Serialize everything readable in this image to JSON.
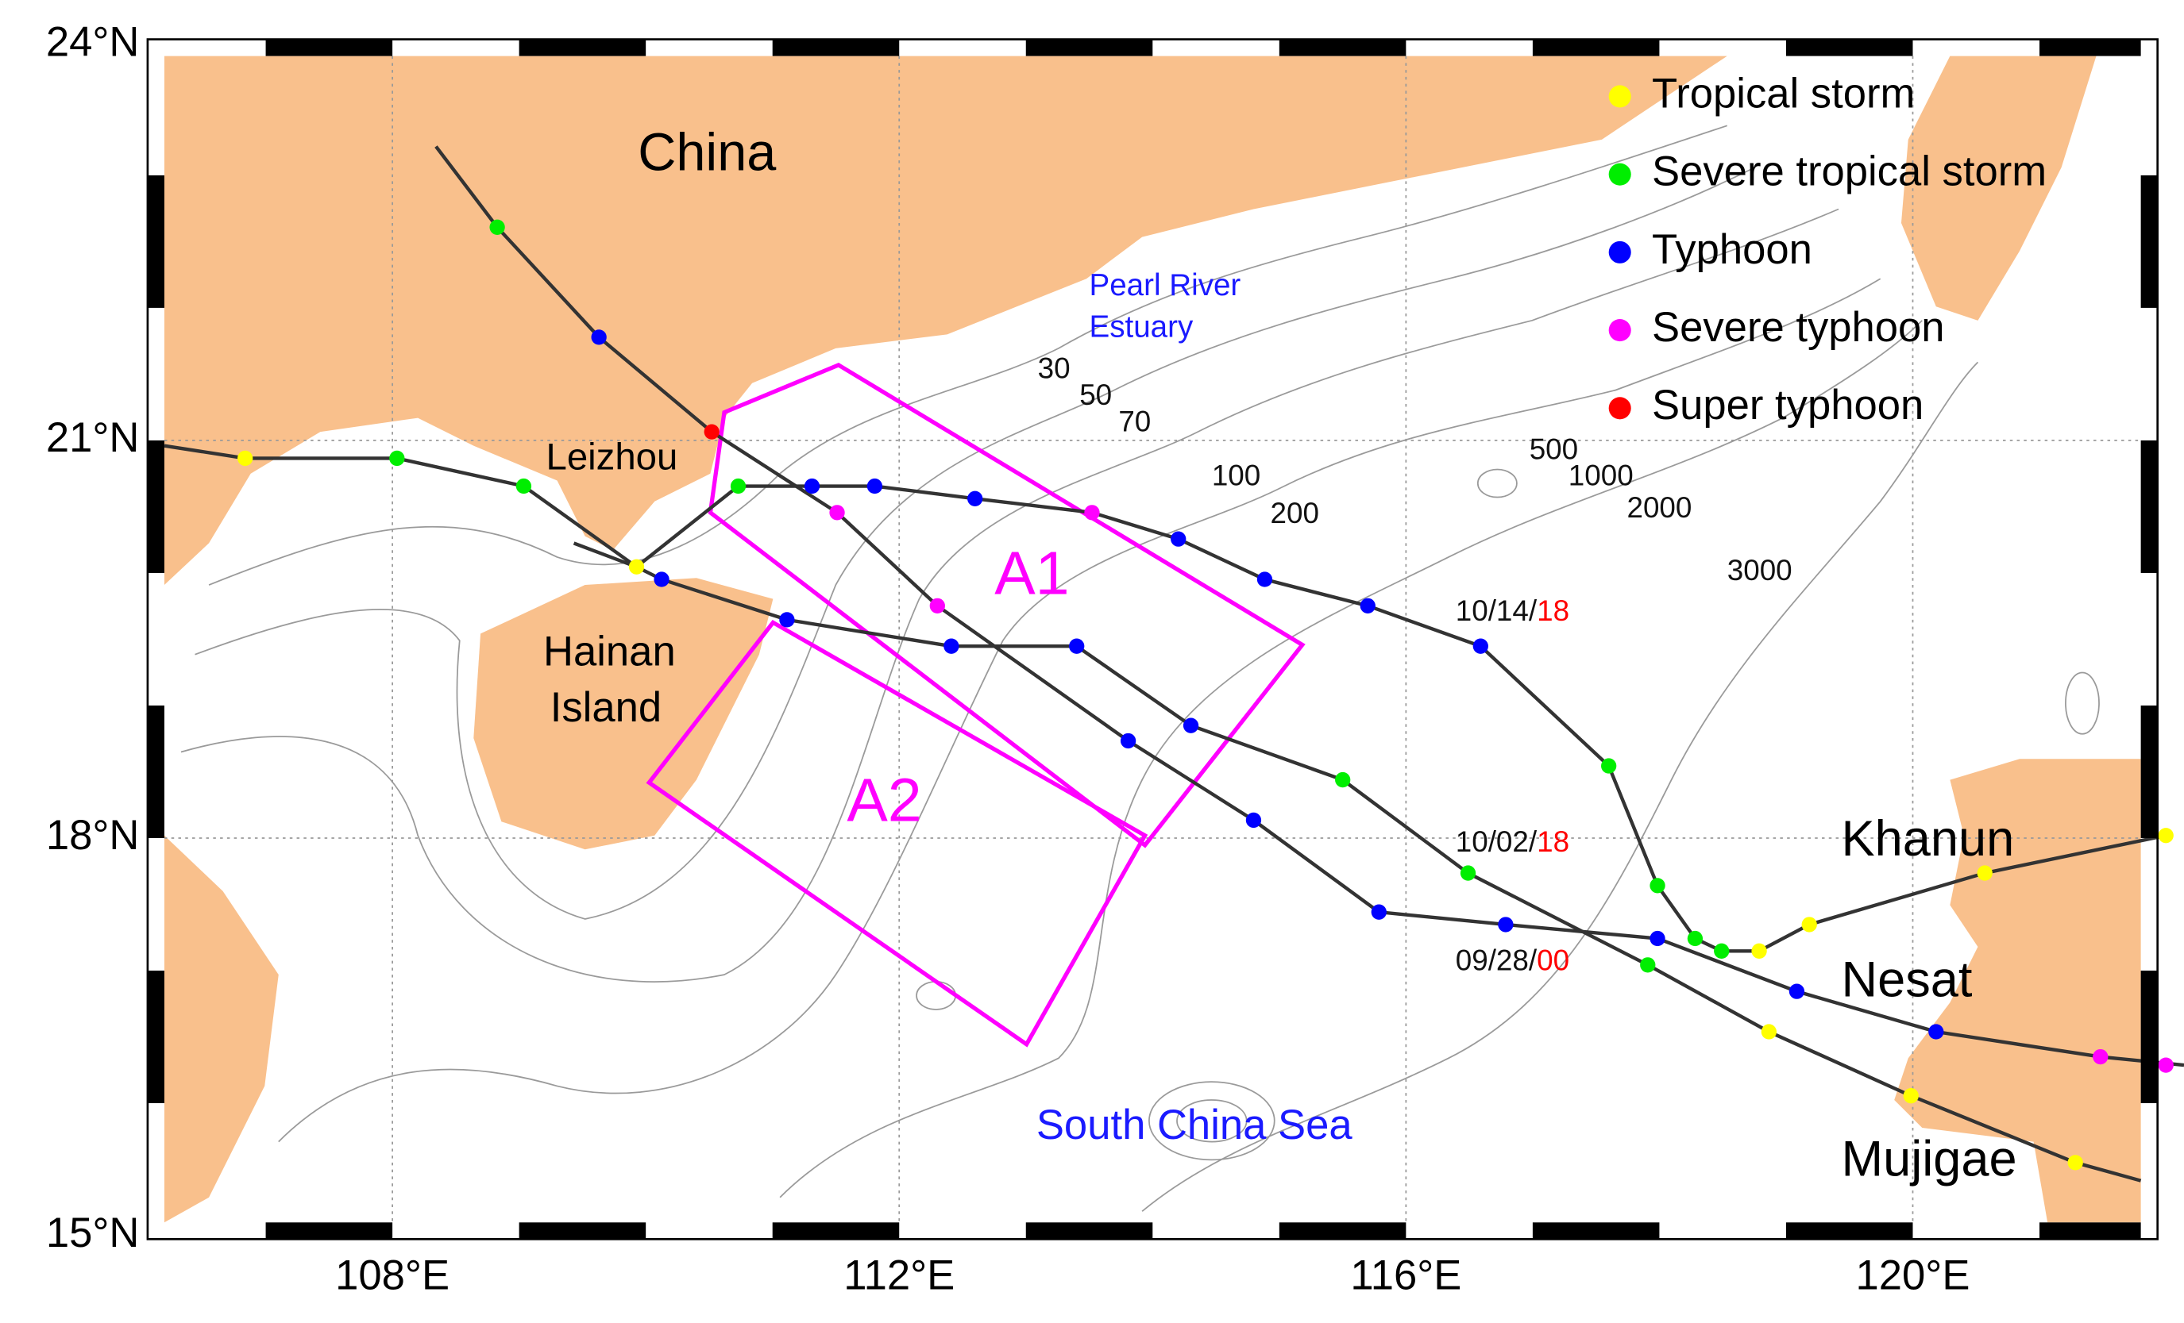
{
  "map": {
    "xlim": [
      106.2,
      121.8
    ],
    "ylim": [
      15.1,
      23.9
    ],
    "xticks": [
      {
        "value": 108,
        "label": "108°E"
      },
      {
        "value": 112,
        "label": "112°E"
      },
      {
        "value": 116,
        "label": "116°E"
      },
      {
        "value": 120,
        "label": "120°E"
      }
    ],
    "yticks": [
      {
        "value": 15,
        "label": "15°N"
      },
      {
        "value": 18,
        "label": "18°N"
      },
      {
        "value": 21,
        "label": "21°N"
      },
      {
        "value": 24,
        "label": "24°N"
      }
    ],
    "grid": true,
    "legend": [
      {
        "label": "Tropical storm",
        "color": "#ffff00"
      },
      {
        "label": "Severe tropical storm",
        "color": "#00ee00"
      },
      {
        "label": "Typhoon",
        "color": "#0000ff"
      },
      {
        "label": "Severe typhoon",
        "color": "#ff00ff"
      },
      {
        "label": "Super typhoon",
        "color": "#ff0000"
      }
    ],
    "places": [
      "China",
      "Leizhou",
      "Hainan",
      "Island"
    ],
    "water": [
      "Pearl River",
      "Estuary",
      "South China Sea"
    ],
    "depth_labels": [
      30,
      50,
      70,
      100,
      200,
      500,
      1000,
      2000,
      3000
    ],
    "areas": [
      "A1",
      "A2"
    ],
    "typhoons": [
      "Khanun",
      "Nesat",
      "Mujigae"
    ],
    "dates": [
      {
        "day": "10/14/",
        "hour": "18"
      },
      {
        "day": "10/02/",
        "hour": "18"
      },
      {
        "day": "09/28/",
        "hour": "00"
      }
    ]
  }
}
